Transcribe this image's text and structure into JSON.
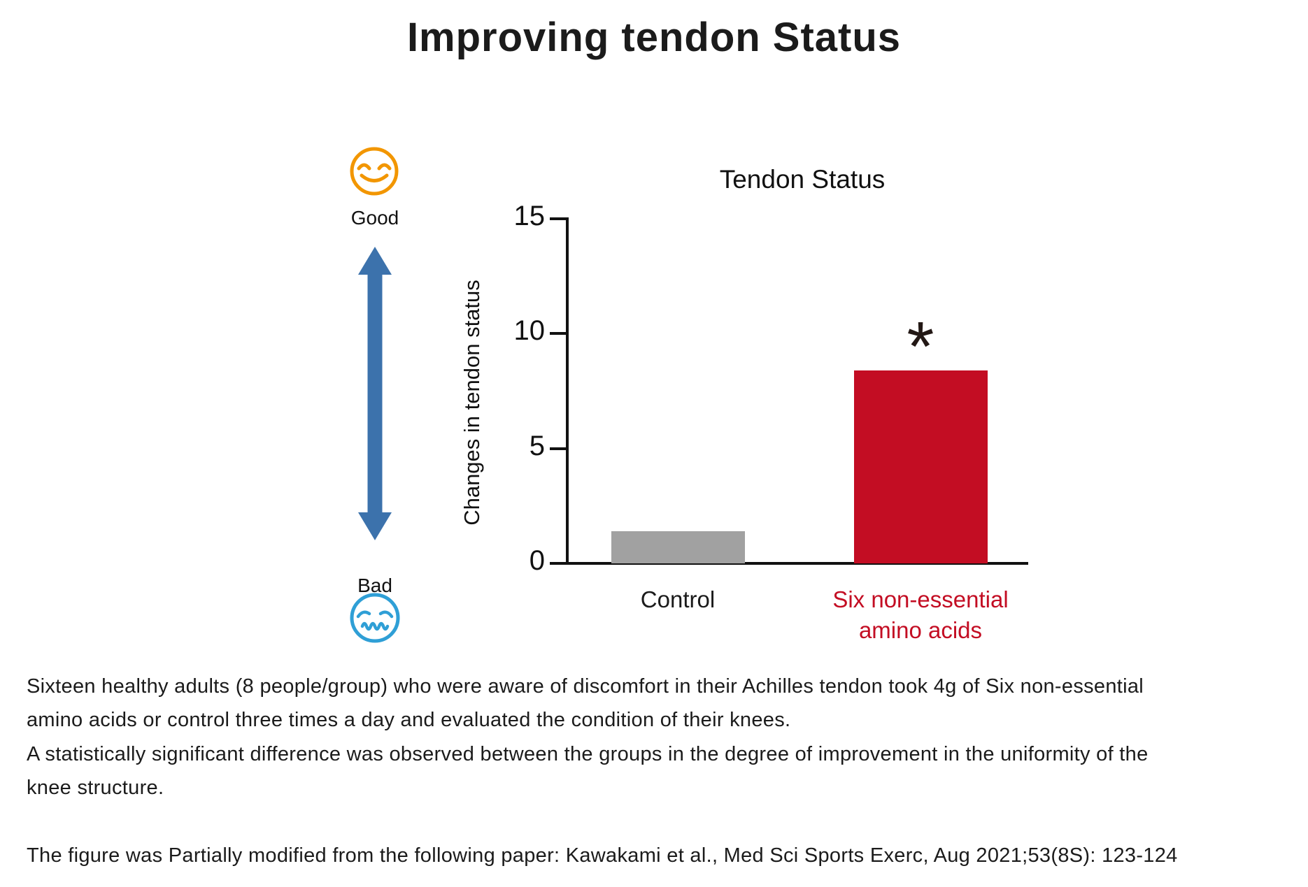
{
  "page": {
    "title": "Improving tendon Status",
    "background_color": "#ffffff"
  },
  "scale_indicator": {
    "good_label": "Good",
    "bad_label": "Bad",
    "good_face_icon": "smiling-face-icon",
    "bad_face_icon": "confounded-face-icon",
    "arrow_icon": "vertical-double-arrow-icon",
    "good_face_color": "#F29600",
    "bad_face_color": "#2F9FD6",
    "arrow_color": "#3C72AC"
  },
  "chart_data": {
    "type": "bar",
    "title": "Tendon Status",
    "xlabel": "",
    "ylabel": "Changes in tendon status",
    "categories": [
      "Control",
      "Six non-essential amino acids"
    ],
    "category_display_lines": [
      [
        "Control"
      ],
      [
        "Six non-essential",
        "amino acids"
      ]
    ],
    "values": [
      1.4,
      8.4
    ],
    "bar_colors": [
      "#A1A1A1",
      "#C30D23"
    ],
    "label_colors": [
      "#1b1b1b",
      "#C30D23"
    ],
    "ylim": [
      0,
      15
    ],
    "yticks": [
      0,
      5,
      10,
      15
    ],
    "grid": false,
    "legend": "none",
    "annotations": [
      {
        "text": "*",
        "category_index": 1,
        "meaning": "statistically significant difference"
      }
    ]
  },
  "caption": {
    "lines": [
      "Sixteen healthy adults (8 people/group) who were aware of discomfort in their Achilles tendon took 4g of Six non-essential",
      "amino acids or control three times a day and evaluated the condition of their knees.",
      "A statistically significant difference was observed between the groups in the degree of improvement in the uniformity of the",
      "knee structure."
    ]
  },
  "citation": {
    "text": "The figure was Partially modified from the following paper: Kawakami et al., Med Sci Sports Exerc, Aug 2021;53(8S): 123-124"
  }
}
